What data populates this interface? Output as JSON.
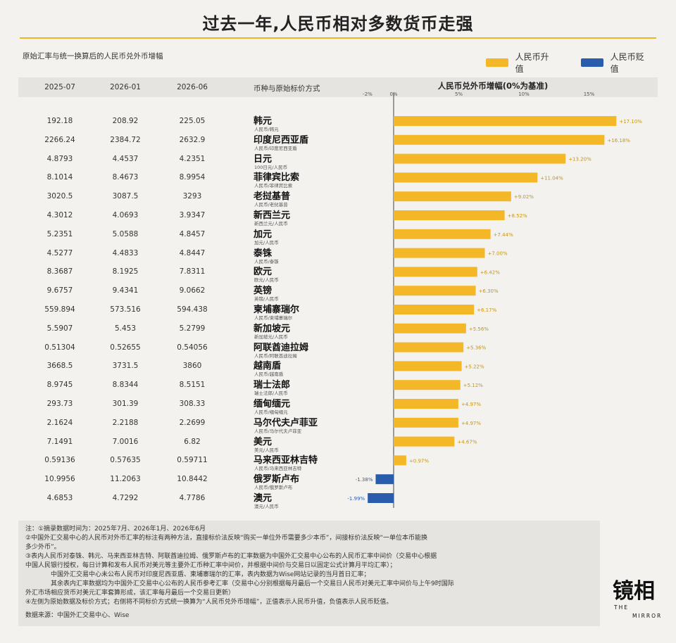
{
  "title": "过去一年,人民币相对多数货币走强",
  "subtitle": "原始汇率与统一换算后的人民币兑外币增幅",
  "legend": {
    "up": {
      "label": "人民币升值",
      "color": "#f4b727"
    },
    "down": {
      "label": "人民币贬值",
      "color": "#2a5cae"
    }
  },
  "columns": {
    "c1": "2025-07",
    "c2": "2026-01",
    "c3": "2026-06",
    "c4": "币种与原始标价方式"
  },
  "chart_data": {
    "type": "bar",
    "title": "人民币兑外币增幅(0%为基准)",
    "xlim": [
      -2,
      17.5
    ],
    "ticks": [
      {
        "value": -2,
        "label": "-2%"
      },
      {
        "value": 0,
        "label": "0%"
      },
      {
        "value": 5,
        "label": "5%"
      },
      {
        "value": 10,
        "label": "10%"
      },
      {
        "value": 15,
        "label": "15%"
      }
    ],
    "rows": [
      {
        "v1": "192.18",
        "v2": "208.92",
        "v3": "225.05",
        "name": "韩元",
        "sub": "人民币/韩元",
        "value": 17.1,
        "label": "+17.10%"
      },
      {
        "v1": "2266.24",
        "v2": "2384.72",
        "v3": "2632.9",
        "name": "印度尼西亚盾",
        "sub": "人民币/印度尼西亚盾",
        "value": 16.18,
        "label": "+16.18%"
      },
      {
        "v1": "4.8793",
        "v2": "4.4537",
        "v3": "4.2351",
        "name": "日元",
        "sub": "100日元/人民币",
        "value": 13.2,
        "label": "+13.20%"
      },
      {
        "v1": "8.1014",
        "v2": "8.4673",
        "v3": "8.9954",
        "name": "菲律宾比索",
        "sub": "人民币/菲律宾比索",
        "value": 11.04,
        "label": "+11.04%"
      },
      {
        "v1": "3020.5",
        "v2": "3087.5",
        "v3": "3293",
        "name": "老挝基普",
        "sub": "人民币/老挝基普",
        "value": 9.02,
        "label": "+9.02%"
      },
      {
        "v1": "4.3012",
        "v2": "4.0693",
        "v3": "3.9347",
        "name": "新西兰元",
        "sub": "新西兰元/人民币",
        "value": 8.52,
        "label": "+8.52%"
      },
      {
        "v1": "5.2351",
        "v2": "5.0588",
        "v3": "4.8457",
        "name": "加元",
        "sub": "加元/人民币",
        "value": 7.44,
        "label": "+7.44%"
      },
      {
        "v1": "4.5277",
        "v2": "4.4833",
        "v3": "4.8447",
        "name": "泰铢",
        "sub": "人民币/泰铢",
        "value": 7.0,
        "label": "+7.00%"
      },
      {
        "v1": "8.3687",
        "v2": "8.1925",
        "v3": "7.8311",
        "name": "欧元",
        "sub": "欧元/人民币",
        "value": 6.42,
        "label": "+6.42%"
      },
      {
        "v1": "9.6757",
        "v2": "9.4341",
        "v3": "9.0662",
        "name": "英镑",
        "sub": "英镑/人民币",
        "value": 6.3,
        "label": "+6.30%"
      },
      {
        "v1": "559.894",
        "v2": "573.516",
        "v3": "594.438",
        "name": "柬埔寨瑞尔",
        "sub": "人民币/柬埔寨瑞尔",
        "value": 6.17,
        "label": "+6.17%"
      },
      {
        "v1": "5.5907",
        "v2": "5.453",
        "v3": "5.2799",
        "name": "新加坡元",
        "sub": "新加坡元/人民币",
        "value": 5.56,
        "label": "+5.56%"
      },
      {
        "v1": "0.51304",
        "v2": "0.52655",
        "v3": "0.54056",
        "name": "阿联酋迪拉姆",
        "sub": "人民币/阿联酋迪拉姆",
        "value": 5.36,
        "label": "+5.36%"
      },
      {
        "v1": "3668.5",
        "v2": "3731.5",
        "v3": "3860",
        "name": "越南盾",
        "sub": "人民币/越南盾",
        "value": 5.22,
        "label": "+5.22%"
      },
      {
        "v1": "8.9745",
        "v2": "8.8344",
        "v3": "8.5151",
        "name": "瑞士法郎",
        "sub": "瑞士法郎/人民币",
        "value": 5.12,
        "label": "+5.12%"
      },
      {
        "v1": "293.73",
        "v2": "301.39",
        "v3": "308.33",
        "name": "缅甸缅元",
        "sub": "人民币/缅甸缅元",
        "value": 4.97,
        "label": "+4.97%"
      },
      {
        "v1": "2.1624",
        "v2": "2.2188",
        "v3": "2.2699",
        "name": "马尔代夫卢菲亚",
        "sub": "人民币/马尔代夫卢菲亚",
        "value": 4.97,
        "label": "+4.97%"
      },
      {
        "v1": "7.1491",
        "v2": "7.0016",
        "v3": "6.82",
        "name": "美元",
        "sub": "美元/人民币",
        "value": 4.67,
        "label": "+4.67%"
      },
      {
        "v1": "0.59136",
        "v2": "0.57635",
        "v3": "0.59711",
        "name": "马来西亚林吉特",
        "sub": "人民币/马来西亚林吉特",
        "value": 0.97,
        "label": "+0.97%"
      },
      {
        "v1": "10.9956",
        "v2": "11.2063",
        "v3": "10.8442",
        "name": "俄罗斯卢布",
        "sub": "人民币/俄罗斯卢布",
        "value": -1.38,
        "label": "-1.38%"
      },
      {
        "v1": "4.6853",
        "v2": "4.7292",
        "v3": "4.7786",
        "name": "澳元",
        "sub": "澳元/人民币",
        "value": -1.99,
        "label": "-1.99%"
      }
    ]
  },
  "notes": [
    "注：①摘录数据时间为：2025年7月、2026年1月、2026年6月",
    "②中国外汇交易中心的人民币对外币汇率的标注有两种方法，直接标价法反映“购买一单位外币需要多少本币”，间接标价法反映“一单位本币能换",
    "多少外币”。",
    "③表内人民币对泰铢、韩元、马来西亚林吉特、阿联酋迪拉姆、俄罗斯卢布的汇率数据为中国外汇交易中心公布的人民币汇率中间价（交易中心根据",
    "中国人民银行授权，每日计算和发布人民币对美元等主要外汇币种汇率中间价，并根据中间价与交易日以固定公式计算月平均汇率）；",
    "中国外汇交易中心未公布人民币对印度尼西亚盾、柬埔寨瑞尔的汇率，表内数据为Wise网站记录的当月首日汇率；",
    "其余表内汇率数据均为中国外汇交易中心公布的人民币参考汇率（交易中心分别根据每月最后一个交易日人民币对美元汇率中间价与上午9时国际",
    "外汇市场相应货币对美元汇率套算形成，该汇率每月最后一个交易日更新）",
    "④左侧为原始数据及标价方式；右侧将不同标价方式统一换算为“人民币兑外币增幅”，正值表示人民币升值，负值表示人民币贬值。"
  ],
  "source": "数据来源：中国外汇交易中心、Wise",
  "logo": {
    "big": "镜相",
    "small1": "THE",
    "small2": "MIRROR"
  }
}
